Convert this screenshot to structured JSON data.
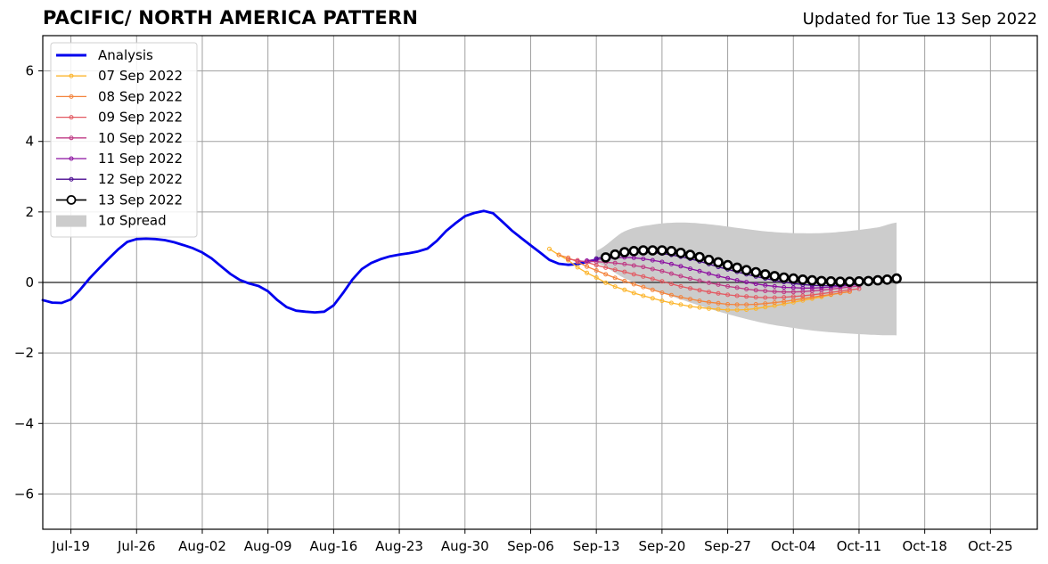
{
  "header": {
    "title": "PACIFIC/ NORTH AMERICA PATTERN",
    "updated": "Updated for Tue 13 Sep 2022"
  },
  "chart_data": {
    "type": "line",
    "title": "PACIFIC/ NORTH AMERICA PATTERN",
    "subtitle": "Updated for Tue 13 Sep 2022",
    "xlabel": "",
    "ylabel": "",
    "x_axis": "date (year 2022)",
    "xlim": [
      "2022-07-16",
      "2022-10-30"
    ],
    "ylim": [
      -7,
      7
    ],
    "xticks": [
      "Jul-19",
      "Jul-26",
      "Aug-02",
      "Aug-09",
      "Aug-16",
      "Aug-23",
      "Aug-30",
      "Sep-06",
      "Sep-13",
      "Sep-20",
      "Sep-27",
      "Oct-04",
      "Oct-11",
      "Oct-18",
      "Oct-25"
    ],
    "xtick_dates": [
      "2022-07-19",
      "2022-07-26",
      "2022-08-02",
      "2022-08-09",
      "2022-08-16",
      "2022-08-23",
      "2022-08-30",
      "2022-09-06",
      "2022-09-13",
      "2022-09-20",
      "2022-09-27",
      "2022-10-04",
      "2022-10-11",
      "2022-10-18",
      "2022-10-25"
    ],
    "yticks": [
      -6,
      -4,
      -2,
      0,
      2,
      4,
      6
    ],
    "ytick_labels": [
      "−6",
      "−4",
      "−2",
      "0",
      "2",
      "4",
      "6"
    ],
    "grid": true,
    "legend_position": "upper-left",
    "analysis": {
      "name": "Analysis",
      "color": "#0000ee",
      "points": [
        [
          "2022-07-16",
          -0.5
        ],
        [
          "2022-07-17",
          -0.57
        ],
        [
          "2022-07-18",
          -0.58
        ],
        [
          "2022-07-19",
          -0.48
        ],
        [
          "2022-07-20",
          -0.2
        ],
        [
          "2022-07-21",
          0.12
        ],
        [
          "2022-07-22",
          0.4
        ],
        [
          "2022-07-23",
          0.67
        ],
        [
          "2022-07-24",
          0.93
        ],
        [
          "2022-07-25",
          1.15
        ],
        [
          "2022-07-26",
          1.23
        ],
        [
          "2022-07-27",
          1.24
        ],
        [
          "2022-07-28",
          1.23
        ],
        [
          "2022-07-29",
          1.2
        ],
        [
          "2022-07-30",
          1.14
        ],
        [
          "2022-07-31",
          1.06
        ],
        [
          "2022-08-01",
          0.97
        ],
        [
          "2022-08-02",
          0.85
        ],
        [
          "2022-08-03",
          0.68
        ],
        [
          "2022-08-04",
          0.46
        ],
        [
          "2022-08-05",
          0.24
        ],
        [
          "2022-08-06",
          0.07
        ],
        [
          "2022-08-07",
          -0.03
        ],
        [
          "2022-08-08",
          -0.1
        ],
        [
          "2022-08-09",
          -0.25
        ],
        [
          "2022-08-10",
          -0.5
        ],
        [
          "2022-08-11",
          -0.7
        ],
        [
          "2022-08-12",
          -0.8
        ],
        [
          "2022-08-13",
          -0.83
        ],
        [
          "2022-08-14",
          -0.85
        ],
        [
          "2022-08-15",
          -0.83
        ],
        [
          "2022-08-16",
          -0.65
        ],
        [
          "2022-08-17",
          -0.3
        ],
        [
          "2022-08-18",
          0.08
        ],
        [
          "2022-08-19",
          0.38
        ],
        [
          "2022-08-20",
          0.55
        ],
        [
          "2022-08-21",
          0.66
        ],
        [
          "2022-08-22",
          0.74
        ],
        [
          "2022-08-23",
          0.79
        ],
        [
          "2022-08-24",
          0.83
        ],
        [
          "2022-08-25",
          0.88
        ],
        [
          "2022-08-26",
          0.96
        ],
        [
          "2022-08-27",
          1.18
        ],
        [
          "2022-08-28",
          1.46
        ],
        [
          "2022-08-29",
          1.68
        ],
        [
          "2022-08-30",
          1.88
        ],
        [
          "2022-08-31",
          1.97
        ],
        [
          "2022-09-01",
          2.03
        ],
        [
          "2022-09-02",
          1.96
        ],
        [
          "2022-09-03",
          1.72
        ],
        [
          "2022-09-04",
          1.47
        ],
        [
          "2022-09-05",
          1.26
        ],
        [
          "2022-09-06",
          1.05
        ],
        [
          "2022-09-07",
          0.85
        ],
        [
          "2022-09-08",
          0.64
        ],
        [
          "2022-09-09",
          0.53
        ],
        [
          "2022-09-10",
          0.5
        ],
        [
          "2022-09-11",
          0.52
        ],
        [
          "2022-09-12",
          0.58
        ],
        [
          "2022-09-13",
          0.65
        ]
      ]
    },
    "spread": {
      "name": "1σ Spread",
      "color": "#cccccc",
      "x": [
        "2022-09-13",
        "2022-09-16",
        "2022-09-19",
        "2022-09-22",
        "2022-09-25",
        "2022-09-28",
        "2022-10-01",
        "2022-10-04",
        "2022-10-07",
        "2022-10-10",
        "2022-10-13",
        "2022-10-15"
      ],
      "upper": [
        0.9,
        1.45,
        1.64,
        1.7,
        1.65,
        1.55,
        1.45,
        1.4,
        1.4,
        1.46,
        1.56,
        1.7
      ],
      "lower": [
        0.55,
        0.12,
        -0.2,
        -0.48,
        -0.74,
        -0.97,
        -1.16,
        -1.29,
        -1.39,
        -1.45,
        -1.49,
        -1.5
      ]
    },
    "series": [
      {
        "name": "07 Sep 2022",
        "color": "#fcb52c",
        "marker_size": 2,
        "start": "2022-09-08",
        "end": "2022-10-10",
        "values": [
          0.95,
          0.78,
          0.63,
          0.43,
          0.27,
          0.14,
          -0.01,
          -0.12,
          -0.21,
          -0.3,
          -0.38,
          -0.45,
          -0.52,
          -0.58,
          -0.63,
          -0.68,
          -0.71,
          -0.74,
          -0.76,
          -0.78,
          -0.78,
          -0.77,
          -0.74,
          -0.7,
          -0.66,
          -0.61,
          -0.56,
          -0.51,
          -0.46,
          -0.41,
          -0.35,
          -0.3,
          -0.26
        ]
      },
      {
        "name": "08 Sep 2022",
        "color": "#f4833b",
        "marker_size": 2,
        "start": "2022-09-09",
        "end": "2022-10-10",
        "values": [
          0.78,
          0.7,
          0.58,
          0.45,
          0.34,
          0.23,
          0.13,
          0.04,
          -0.05,
          -0.13,
          -0.21,
          -0.29,
          -0.36,
          -0.42,
          -0.47,
          -0.52,
          -0.56,
          -0.59,
          -0.62,
          -0.63,
          -0.63,
          -0.62,
          -0.6,
          -0.57,
          -0.54,
          -0.5,
          -0.46,
          -0.42,
          -0.38,
          -0.34,
          -0.3,
          -0.26
        ]
      },
      {
        "name": "09 Sep 2022",
        "color": "#e35a62",
        "marker_size": 2,
        "start": "2022-09-10",
        "end": "2022-10-11",
        "values": [
          0.66,
          0.63,
          0.57,
          0.49,
          0.42,
          0.36,
          0.3,
          0.23,
          0.17,
          0.1,
          0.03,
          -0.04,
          -0.11,
          -0.17,
          -0.22,
          -0.27,
          -0.31,
          -0.35,
          -0.38,
          -0.4,
          -0.42,
          -0.43,
          -0.43,
          -0.42,
          -0.4,
          -0.38,
          -0.35,
          -0.32,
          -0.28,
          -0.25,
          -0.21,
          -0.18
        ]
      },
      {
        "name": "10 Sep 2022",
        "color": "#bf3984",
        "marker_size": 2,
        "start": "2022-09-11",
        "end": "2022-10-11",
        "values": [
          0.6,
          0.6,
          0.59,
          0.57,
          0.55,
          0.52,
          0.48,
          0.44,
          0.38,
          0.32,
          0.25,
          0.18,
          0.11,
          0.05,
          -0.01,
          -0.06,
          -0.11,
          -0.15,
          -0.19,
          -0.22,
          -0.24,
          -0.26,
          -0.27,
          -0.27,
          -0.26,
          -0.24,
          -0.22,
          -0.19,
          -0.16,
          -0.13,
          -0.1
        ]
      },
      {
        "name": "11 Sep 2022",
        "color": "#8c10a1",
        "marker_size": 2,
        "start": "2022-09-12",
        "end": "2022-10-11",
        "values": [
          0.62,
          0.65,
          0.68,
          0.7,
          0.71,
          0.7,
          0.67,
          0.63,
          0.58,
          0.52,
          0.46,
          0.39,
          0.32,
          0.25,
          0.18,
          0.12,
          0.06,
          0.01,
          -0.04,
          -0.08,
          -0.11,
          -0.14,
          -0.15,
          -0.16,
          -0.16,
          -0.15,
          -0.13,
          -0.11,
          -0.08,
          -0.06
        ]
      },
      {
        "name": "12 Sep 2022",
        "color": "#4a0a91",
        "marker_size": 2,
        "start": "2022-09-13",
        "end": "2022-10-11",
        "values": [
          0.68,
          0.74,
          0.8,
          0.84,
          0.86,
          0.86,
          0.85,
          0.82,
          0.78,
          0.73,
          0.67,
          0.6,
          0.52,
          0.44,
          0.37,
          0.3,
          0.23,
          0.17,
          0.11,
          0.06,
          0.01,
          -0.03,
          -0.06,
          -0.08,
          -0.09,
          -0.09,
          -0.08,
          -0.06,
          -0.04
        ]
      },
      {
        "name": "13 Sep 2022",
        "color": "#000000",
        "marker_size": 4.5,
        "marker_fill": "#ffffff",
        "start": "2022-09-14",
        "end": "2022-10-15",
        "values": [
          0.71,
          0.79,
          0.86,
          0.89,
          0.91,
          0.91,
          0.91,
          0.89,
          0.84,
          0.78,
          0.72,
          0.64,
          0.57,
          0.49,
          0.42,
          0.35,
          0.29,
          0.23,
          0.18,
          0.14,
          0.11,
          0.08,
          0.06,
          0.04,
          0.03,
          0.02,
          0.02,
          0.03,
          0.04,
          0.06,
          0.08,
          0.11
        ]
      }
    ]
  }
}
